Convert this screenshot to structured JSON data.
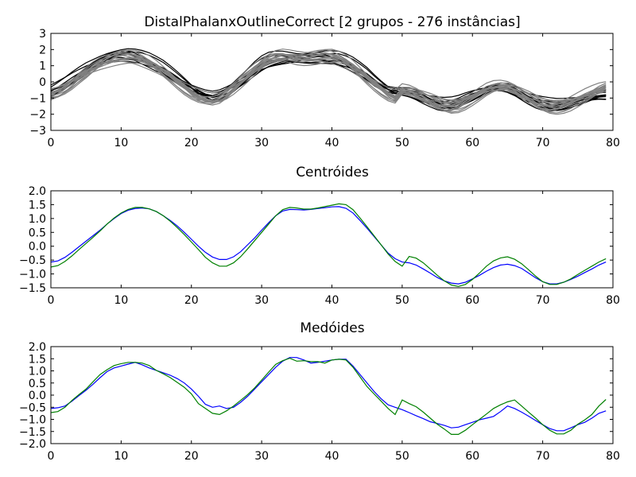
{
  "colors": {
    "cluster_a": "#000000",
    "cluster_b": "#808080",
    "blue": "#0000ff",
    "green": "#008000"
  },
  "chart_data": [
    {
      "type": "line",
      "title": "DistalPhalanxOutlineCorrect [2 grupos - 276 instâncias]",
      "xlim": [
        0,
        80
      ],
      "ylim": [
        -3,
        3
      ],
      "xticks": [
        0,
        10,
        20,
        30,
        40,
        50,
        60,
        70,
        80
      ],
      "yticks": [
        -3,
        -2,
        -1,
        0,
        1,
        2,
        3
      ],
      "grid": false,
      "series": [
        {
          "color": "#000000",
          "members_shown": 10,
          "profile": [
            -0.55,
            -0.35,
            -0.1,
            0.2,
            0.5,
            0.8,
            1.05,
            1.3,
            1.5,
            1.65,
            1.75,
            1.78,
            1.7,
            1.55,
            1.35,
            1.1,
            0.85,
            0.55,
            0.25,
            -0.05,
            -0.35,
            -0.6,
            -0.8,
            -0.9,
            -0.8,
            -0.55,
            -0.25,
            0.1,
            0.45,
            0.8,
            1.1,
            1.3,
            1.4,
            1.45,
            1.45,
            1.45,
            1.5,
            1.55,
            1.6,
            1.65,
            1.6,
            1.5,
            1.3,
            1.05,
            0.75,
            0.45,
            0.1,
            -0.2,
            -0.45,
            -0.6,
            -0.65,
            -0.7,
            -0.8,
            -0.95,
            -1.1,
            -1.25,
            -1.35,
            -1.35,
            -1.25,
            -1.05,
            -0.85,
            -0.65,
            -0.5,
            -0.4,
            -0.35,
            -0.4,
            -0.55,
            -0.75,
            -0.95,
            -1.15,
            -1.3,
            -1.4,
            -1.45,
            -1.4,
            -1.3,
            -1.2,
            -1.1,
            -1.0,
            -0.9,
            -0.85
          ]
        },
        {
          "color": "#808080",
          "members_shown": 14,
          "profile": [
            -0.75,
            -0.6,
            -0.35,
            -0.05,
            0.3,
            0.6,
            0.9,
            1.15,
            1.35,
            1.5,
            1.6,
            1.62,
            1.55,
            1.4,
            1.2,
            0.95,
            0.65,
            0.35,
            0.0,
            -0.35,
            -0.65,
            -0.9,
            -1.05,
            -1.1,
            -1.0,
            -0.75,
            -0.4,
            0.0,
            0.4,
            0.8,
            1.15,
            1.4,
            1.55,
            1.6,
            1.55,
            1.5,
            1.5,
            1.55,
            1.6,
            1.65,
            1.6,
            1.45,
            1.25,
            0.95,
            0.6,
            0.25,
            -0.1,
            -0.45,
            -0.75,
            -0.95,
            -0.5,
            -0.55,
            -0.7,
            -0.9,
            -1.1,
            -1.3,
            -1.45,
            -1.5,
            -1.4,
            -1.2,
            -0.95,
            -0.7,
            -0.45,
            -0.3,
            -0.25,
            -0.3,
            -0.45,
            -0.7,
            -0.95,
            -1.2,
            -1.4,
            -1.5,
            -1.5,
            -1.4,
            -1.25,
            -1.05,
            -0.85,
            -0.65,
            -0.45,
            -0.3
          ]
        }
      ]
    },
    {
      "type": "line",
      "title": "Centróides",
      "xlim": [
        0,
        80
      ],
      "ylim": [
        -1.5,
        2.0
      ],
      "xticks": [
        0,
        10,
        20,
        30,
        40,
        50,
        60,
        70,
        80
      ],
      "yticks": [
        -1.5,
        -1.0,
        -0.5,
        0.0,
        0.5,
        1.0,
        1.5,
        2.0
      ],
      "grid": false,
      "series": [
        {
          "color": "#0000ff",
          "values": [
            -0.57,
            -0.53,
            -0.4,
            -0.22,
            -0.02,
            0.18,
            0.38,
            0.58,
            0.8,
            1.0,
            1.18,
            1.3,
            1.36,
            1.38,
            1.35,
            1.25,
            1.1,
            0.93,
            0.73,
            0.5,
            0.25,
            0.0,
            -0.22,
            -0.39,
            -0.48,
            -0.48,
            -0.38,
            -0.2,
            0.05,
            0.3,
            0.58,
            0.85,
            1.1,
            1.27,
            1.33,
            1.32,
            1.31,
            1.33,
            1.36,
            1.39,
            1.42,
            1.43,
            1.37,
            1.2,
            0.93,
            0.65,
            0.35,
            0.05,
            -0.25,
            -0.45,
            -0.57,
            -0.6,
            -0.68,
            -0.82,
            -0.97,
            -1.13,
            -1.25,
            -1.33,
            -1.36,
            -1.3,
            -1.18,
            -1.05,
            -0.9,
            -0.77,
            -0.68,
            -0.65,
            -0.7,
            -0.8,
            -0.97,
            -1.14,
            -1.28,
            -1.36,
            -1.36,
            -1.3,
            -1.2,
            -1.08,
            -0.95,
            -0.82,
            -0.68,
            -0.57
          ]
        },
        {
          "color": "#008000",
          "values": [
            -0.75,
            -0.7,
            -0.55,
            -0.35,
            -0.12,
            0.1,
            0.32,
            0.55,
            0.8,
            1.02,
            1.2,
            1.33,
            1.4,
            1.4,
            1.35,
            1.25,
            1.1,
            0.9,
            0.67,
            0.42,
            0.15,
            -0.12,
            -0.4,
            -0.6,
            -0.72,
            -0.72,
            -0.6,
            -0.38,
            -0.1,
            0.2,
            0.5,
            0.8,
            1.1,
            1.32,
            1.4,
            1.38,
            1.34,
            1.34,
            1.38,
            1.43,
            1.48,
            1.53,
            1.5,
            1.32,
            1.02,
            0.7,
            0.38,
            0.05,
            -0.28,
            -0.55,
            -0.72,
            -0.37,
            -0.43,
            -0.6,
            -0.82,
            -1.05,
            -1.25,
            -1.4,
            -1.45,
            -1.38,
            -1.2,
            -0.97,
            -0.72,
            -0.53,
            -0.42,
            -0.38,
            -0.47,
            -0.63,
            -0.85,
            -1.08,
            -1.28,
            -1.38,
            -1.38,
            -1.3,
            -1.18,
            -1.02,
            -0.87,
            -0.72,
            -0.57,
            -0.45
          ]
        }
      ]
    },
    {
      "type": "line",
      "title": "Medóides",
      "xlim": [
        0,
        80
      ],
      "ylim": [
        -2.0,
        2.0
      ],
      "xticks": [
        0,
        10,
        20,
        30,
        40,
        50,
        60,
        70,
        80
      ],
      "yticks": [
        -2.0,
        -1.5,
        -1.0,
        -0.5,
        0.0,
        0.5,
        1.0,
        1.5,
        2.0
      ],
      "grid": false,
      "series": [
        {
          "color": "#0000ff",
          "values": [
            -0.55,
            -0.52,
            -0.45,
            -0.25,
            -0.02,
            0.2,
            0.45,
            0.72,
            0.97,
            1.12,
            1.2,
            1.28,
            1.35,
            1.25,
            1.12,
            1.02,
            0.92,
            0.82,
            0.68,
            0.5,
            0.25,
            -0.05,
            -0.38,
            -0.5,
            -0.45,
            -0.55,
            -0.5,
            -0.3,
            -0.05,
            0.25,
            0.55,
            0.85,
            1.15,
            1.4,
            1.55,
            1.55,
            1.45,
            1.32,
            1.35,
            1.4,
            1.45,
            1.48,
            1.48,
            1.2,
            0.85,
            0.5,
            0.15,
            -0.15,
            -0.4,
            -0.5,
            -0.6,
            -0.72,
            -0.85,
            -0.97,
            -1.1,
            -1.17,
            -1.25,
            -1.35,
            -1.32,
            -1.22,
            -1.12,
            -1.02,
            -0.95,
            -0.88,
            -0.68,
            -0.45,
            -0.55,
            -0.7,
            -0.87,
            -1.05,
            -1.22,
            -1.38,
            -1.47,
            -1.47,
            -1.35,
            -1.22,
            -1.12,
            -0.95,
            -0.75,
            -0.65
          ]
        },
        {
          "color": "#008000",
          "values": [
            -0.72,
            -0.68,
            -0.5,
            -0.22,
            0.02,
            0.25,
            0.55,
            0.85,
            1.05,
            1.22,
            1.3,
            1.35,
            1.35,
            1.32,
            1.22,
            1.02,
            0.88,
            0.72,
            0.52,
            0.32,
            0.05,
            -0.35,
            -0.55,
            -0.75,
            -0.8,
            -0.65,
            -0.45,
            -0.22,
            0.02,
            0.3,
            0.62,
            0.95,
            1.27,
            1.42,
            1.52,
            1.4,
            1.42,
            1.38,
            1.38,
            1.32,
            1.45,
            1.48,
            1.45,
            1.15,
            0.75,
            0.35,
            0.05,
            -0.25,
            -0.55,
            -0.8,
            -0.2,
            -0.35,
            -0.48,
            -0.7,
            -0.95,
            -1.2,
            -1.4,
            -1.62,
            -1.62,
            -1.45,
            -1.22,
            -1.0,
            -0.78,
            -0.55,
            -0.4,
            -0.28,
            -0.2,
            -0.45,
            -0.7,
            -0.95,
            -1.22,
            -1.45,
            -1.6,
            -1.6,
            -1.45,
            -1.2,
            -1.02,
            -0.8,
            -0.45,
            -0.18
          ]
        }
      ]
    }
  ]
}
